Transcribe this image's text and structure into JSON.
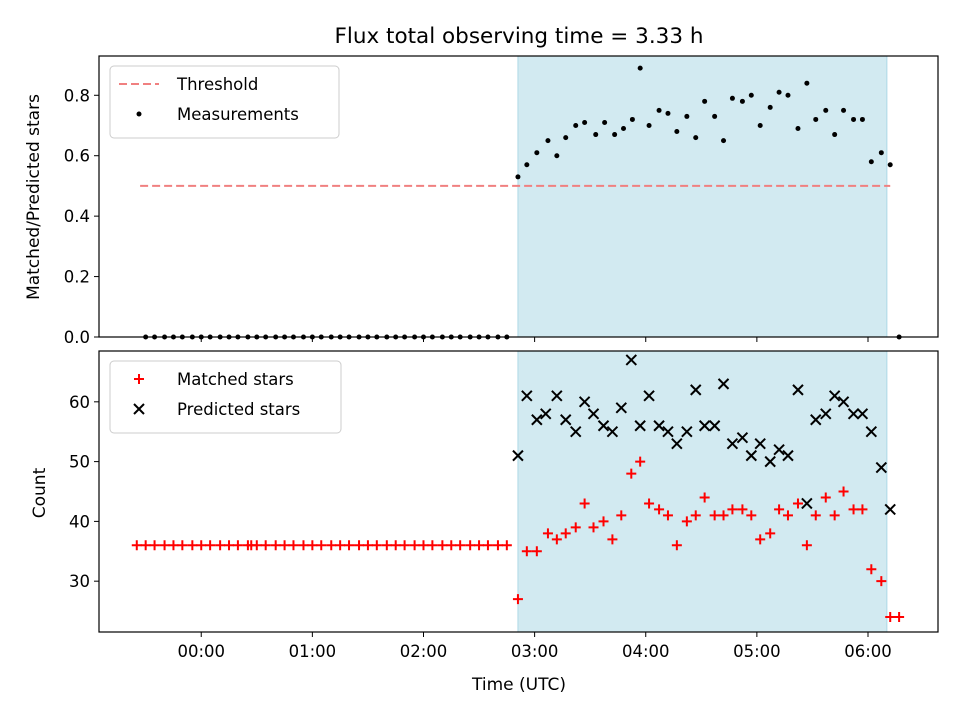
{
  "chart_data": [
    {
      "type": "scatter",
      "title": "Flux total observing time = 3.33 h",
      "ylabel": "Matched/Predicted stars",
      "xlabel": "",
      "ylim": [
        0,
        0.93
      ],
      "yticks": [
        "0.0",
        "0.2",
        "0.4",
        "0.6",
        "0.8"
      ],
      "ytick_values": [
        0,
        0.2,
        0.4,
        0.6,
        0.8
      ],
      "shaded_interval_hours": [
        2.85,
        6.17
      ],
      "shade_color": "#add8e6",
      "legend_position": "upper-left",
      "threshold": {
        "name": "Threshold",
        "value": 0.5,
        "x_range": [
          -0.55,
          6.2
        ],
        "color": "#f08080",
        "style": "dashed"
      },
      "series": [
        {
          "name": "Measurements",
          "marker": "dot",
          "color": "#000000",
          "x": [
            -0.5,
            -0.42,
            -0.33,
            -0.25,
            -0.17,
            -0.08,
            0,
            0.08,
            0.17,
            0.25,
            0.33,
            0.42,
            0.5,
            0.58,
            0.67,
            0.75,
            0.83,
            0.92,
            1,
            1.08,
            1.17,
            1.25,
            1.33,
            1.42,
            1.5,
            1.58,
            1.67,
            1.75,
            1.83,
            1.92,
            2,
            2.08,
            2.17,
            2.25,
            2.33,
            2.42,
            2.5,
            2.58,
            2.67,
            2.75,
            2.85,
            2.93,
            3.02,
            3.12,
            3.2,
            3.28,
            3.37,
            3.45,
            3.55,
            3.63,
            3.72,
            3.8,
            3.88,
            3.95,
            4.03,
            4.12,
            4.2,
            4.28,
            4.37,
            4.45,
            4.53,
            4.62,
            4.7,
            4.78,
            4.87,
            4.95,
            5.03,
            5.12,
            5.2,
            5.28,
            5.37,
            5.45,
            5.53,
            5.62,
            5.7,
            5.78,
            5.87,
            5.95,
            6.03,
            6.12,
            6.2,
            6.28
          ],
          "y": [
            0,
            0,
            0,
            0,
            0,
            0,
            0,
            0,
            0,
            0,
            0,
            0,
            0,
            0,
            0,
            0,
            0,
            0,
            0,
            0,
            0,
            0,
            0,
            0,
            0,
            0,
            0,
            0,
            0,
            0,
            0,
            0,
            0,
            0,
            0,
            0,
            0,
            0,
            0,
            0,
            0.53,
            0.57,
            0.61,
            0.65,
            0.6,
            0.66,
            0.7,
            0.71,
            0.67,
            0.71,
            0.67,
            0.69,
            0.72,
            0.89,
            0.7,
            0.75,
            0.74,
            0.68,
            0.73,
            0.66,
            0.78,
            0.73,
            0.65,
            0.79,
            0.78,
            0.8,
            0.7,
            0.76,
            0.81,
            0.8,
            0.69,
            0.84,
            0.72,
            0.75,
            0.67,
            0.75,
            0.72,
            0.72,
            0.58,
            0.61,
            0.57,
            0
          ]
        }
      ]
    },
    {
      "type": "scatter",
      "title": "",
      "ylabel": "Count",
      "xlabel": "Time (UTC)",
      "ylim": [
        21.5,
        68.5
      ],
      "yticks": [
        "30",
        "40",
        "50",
        "60"
      ],
      "ytick_values": [
        30,
        40,
        50,
        60
      ],
      "xlim": [
        -0.92,
        6.63
      ],
      "xticks": [
        "00:00",
        "01:00",
        "02:00",
        "03:00",
        "04:00",
        "05:00",
        "06:00"
      ],
      "xtick_values": [
        0,
        1,
        2,
        3,
        4,
        5,
        6
      ],
      "shaded_interval_hours": [
        2.85,
        6.17
      ],
      "shade_color": "#add8e6",
      "legend_position": "upper-left",
      "series": [
        {
          "name": "Matched stars",
          "marker": "plus",
          "color": "#ff0000",
          "x": [
            -0.58,
            -0.5,
            -0.42,
            -0.33,
            -0.25,
            -0.17,
            -0.08,
            0,
            0.08,
            0.17,
            0.25,
            0.33,
            0.42,
            0.45,
            0.5,
            0.58,
            0.67,
            0.75,
            0.83,
            0.92,
            1,
            1.08,
            1.17,
            1.25,
            1.33,
            1.42,
            1.5,
            1.58,
            1.67,
            1.75,
            1.83,
            1.92,
            2,
            2.08,
            2.17,
            2.25,
            2.33,
            2.42,
            2.5,
            2.58,
            2.67,
            2.75,
            2.85,
            2.93,
            3.02,
            3.12,
            3.2,
            3.28,
            3.37,
            3.45,
            3.53,
            3.62,
            3.7,
            3.78,
            3.87,
            3.95,
            4.03,
            4.12,
            4.2,
            4.28,
            4.37,
            4.45,
            4.53,
            4.62,
            4.7,
            4.78,
            4.87,
            4.95,
            5.03,
            5.12,
            5.2,
            5.28,
            5.37,
            5.45,
            5.53,
            5.62,
            5.7,
            5.78,
            5.87,
            5.95,
            6.03,
            6.12,
            6.2,
            6.28
          ],
          "y": [
            36,
            36,
            36,
            36,
            36,
            36,
            36,
            36,
            36,
            36,
            36,
            36,
            36,
            36,
            36,
            36,
            36,
            36,
            36,
            36,
            36,
            36,
            36,
            36,
            36,
            36,
            36,
            36,
            36,
            36,
            36,
            36,
            36,
            36,
            36,
            36,
            36,
            36,
            36,
            36,
            36,
            36,
            27,
            35,
            35,
            38,
            37,
            38,
            39,
            43,
            39,
            40,
            37,
            41,
            48,
            50,
            43,
            42,
            41,
            36,
            40,
            41,
            44,
            41,
            41,
            42,
            42,
            41,
            37,
            38,
            42,
            41,
            43,
            36,
            41,
            44,
            41,
            45,
            42,
            42,
            32,
            30,
            24,
            24
          ]
        },
        {
          "name": "Predicted stars",
          "marker": "x",
          "color": "#000000",
          "x": [
            2.85,
            2.93,
            3.02,
            3.1,
            3.2,
            3.28,
            3.37,
            3.45,
            3.53,
            3.62,
            3.7,
            3.78,
            3.87,
            3.95,
            4.03,
            4.12,
            4.2,
            4.28,
            4.37,
            4.45,
            4.53,
            4.62,
            4.7,
            4.78,
            4.87,
            4.95,
            5.03,
            5.12,
            5.2,
            5.28,
            5.37,
            5.45,
            5.53,
            5.62,
            5.7,
            5.78,
            5.87,
            5.95,
            6.03,
            6.12,
            6.2
          ],
          "y": [
            51,
            61,
            57,
            58,
            61,
            57,
            55,
            60,
            58,
            56,
            55,
            59,
            67,
            56,
            61,
            56,
            55,
            53,
            55,
            62,
            56,
            56,
            63,
            53,
            54,
            51,
            53,
            50,
            52,
            51,
            62,
            43,
            57,
            58,
            61,
            60,
            58,
            58,
            55,
            49,
            42
          ]
        }
      ]
    }
  ]
}
